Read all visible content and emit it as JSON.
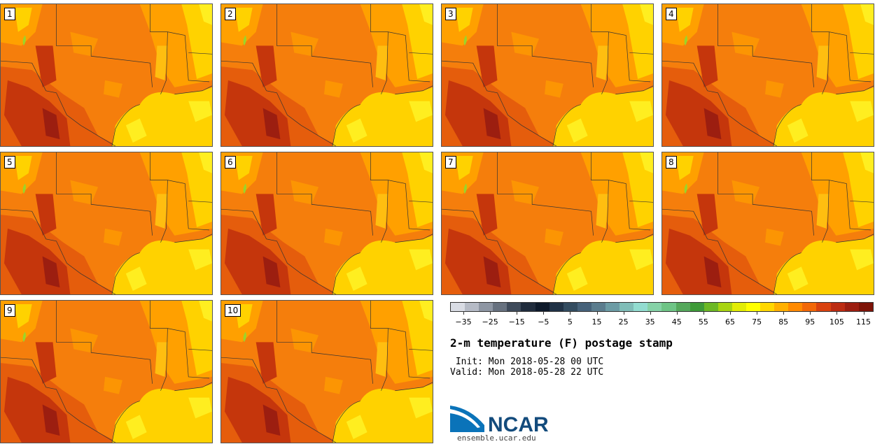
{
  "panels": [
    {
      "label": "1"
    },
    {
      "label": "2"
    },
    {
      "label": "3"
    },
    {
      "label": "4"
    },
    {
      "label": "5"
    },
    {
      "label": "6"
    },
    {
      "label": "7"
    },
    {
      "label": "8"
    },
    {
      "label": "9"
    },
    {
      "label": "10"
    }
  ],
  "colorbar": {
    "colors": [
      "#d9dce4",
      "#b6bbc6",
      "#8e96a3",
      "#67717f",
      "#3e4a5a",
      "#202c3d",
      "#0e1a2b",
      "#203246",
      "#334c60",
      "#46627a",
      "#5b7d8e",
      "#6c9ca5",
      "#80bdb8",
      "#92dcd0",
      "#86d2a7",
      "#6ec486",
      "#55a85c",
      "#3e9a38",
      "#6cb825",
      "#a8d412",
      "#e2ec06",
      "#ffff00",
      "#ffd700",
      "#ffb000",
      "#ff8a00",
      "#f26808",
      "#d9420f",
      "#bc2c12",
      "#9c1e10",
      "#7e1408"
    ],
    "tick_labels": [
      "−35",
      "−25",
      "−15",
      "−5",
      "5",
      "15",
      "25",
      "35",
      "45",
      "55",
      "65",
      "75",
      "85",
      "95",
      "105",
      "115"
    ]
  },
  "title": "2-m temperature (F) postage stamp",
  "init": " Init: Mon 2018-05-28 00 UTC",
  "valid": "Valid: Mon 2018-05-28 22 UTC",
  "logo": {
    "text": "NCAR",
    "colors": {
      "blue": "#0a73b9",
      "navy": "#134b7c"
    }
  },
  "site": "ensemble.ucar.edu"
}
